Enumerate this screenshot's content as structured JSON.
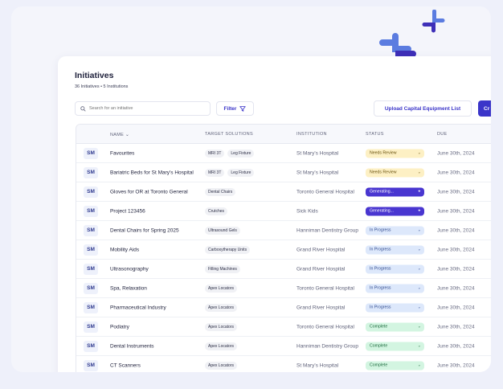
{
  "colors": {
    "accent": "#3b35c9",
    "generating": "#4936d0",
    "needs_review": "#fdf0c4",
    "in_progress": "#dde8fb",
    "complete": "#d3f5e1"
  },
  "header": {
    "title": "Initiatives",
    "subtitle": "36 Initiatives • 5 Institutions"
  },
  "toolbar": {
    "search_placeholder": "Search for an initiative",
    "filter_label": "Filter",
    "upload_label": "Upload Capital Equipment List",
    "create_label": "Cr"
  },
  "table": {
    "columns": {
      "name": "NAME",
      "target": "TARGET SOLUTIONS",
      "institution": "INSTITUTION",
      "status": "STATUS",
      "due": "DUE"
    },
    "rows": [
      {
        "avatar": "SM",
        "name": "Favourites",
        "tags": [
          "MRI 3T",
          "Leg Fixture"
        ],
        "institution": "St Mary's Hospital",
        "status": "Needs Review",
        "status_type": "review",
        "due": "June 30th, 2024"
      },
      {
        "avatar": "SM",
        "name": "Bariatric Beds for St Mary's Hospital",
        "tags": [
          "MRI 3T",
          "Leg Fixture"
        ],
        "institution": "St Mary's Hospital",
        "status": "Needs Review",
        "status_type": "review",
        "due": "June 30th, 2024"
      },
      {
        "avatar": "SM",
        "name": "Gloves for OR at Toronto General",
        "tags": [
          "Dental Chairs"
        ],
        "institution": "Toronto General Hospital",
        "status": "Generating...",
        "status_type": "gen",
        "due": "June 30th, 2024"
      },
      {
        "avatar": "SM",
        "name": "Project 123456",
        "tags": [
          "Crutches"
        ],
        "institution": "Sick Kids",
        "status": "Generating...",
        "status_type": "gen",
        "due": "June 30th, 2024"
      },
      {
        "avatar": "SM",
        "name": "Dental Chairs for Spring 2025",
        "tags": [
          "Ultrasound Gels"
        ],
        "institution": "Hanniman Dentistry Group",
        "status": "In Progress",
        "status_type": "prog",
        "due": "June 30th, 2024"
      },
      {
        "avatar": "SM",
        "name": "Mobility Aids",
        "tags": [
          "Carboxytherapy Units"
        ],
        "institution": "Grand River Hospital",
        "status": "In Progress",
        "status_type": "prog",
        "due": "June 30th, 2024"
      },
      {
        "avatar": "SM",
        "name": "Ultrasonography",
        "tags": [
          "Filling Machines"
        ],
        "institution": "Grand River Hospital",
        "status": "In Progress",
        "status_type": "prog",
        "due": "June 30th, 2024"
      },
      {
        "avatar": "SM",
        "name": "Spa, Relaxation",
        "tags": [
          "Apex Locators"
        ],
        "institution": "Toronto General Hospital",
        "status": "In Progress",
        "status_type": "prog",
        "due": "June 30th, 2024"
      },
      {
        "avatar": "SM",
        "name": "Pharmaceutical Industry",
        "tags": [
          "Apex Locators"
        ],
        "institution": "Grand River Hospital",
        "status": "In Progress",
        "status_type": "prog",
        "due": "June 30th, 2024"
      },
      {
        "avatar": "SM",
        "name": "Podiatry",
        "tags": [
          "Apex Locators"
        ],
        "institution": "Toronto General Hospital",
        "status": "Complete",
        "status_type": "done",
        "due": "June 30th, 2024"
      },
      {
        "avatar": "SM",
        "name": "Dental Instruments",
        "tags": [
          "Apex Locators"
        ],
        "institution": "Hanniman Dentistry Group",
        "status": "Complete",
        "status_type": "done",
        "due": "June 30th, 2024"
      },
      {
        "avatar": "SM",
        "name": "CT Scanners",
        "tags": [
          "Apex Locators"
        ],
        "institution": "St Mary's Hospital",
        "status": "Complete",
        "status_type": "done",
        "due": "June 30th, 2024"
      }
    ]
  }
}
